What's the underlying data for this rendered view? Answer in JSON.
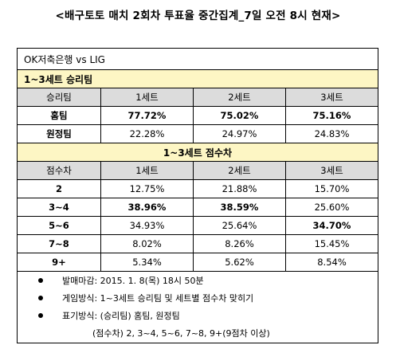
{
  "title": "<배구토토 매치 2회차 투표율 중간집계_7일 오전 8시 현재>",
  "match": "OK저축은행 vs LIG",
  "section1": {
    "title": "1~3세트 승리팀",
    "headers": [
      "승리팀",
      "1세트",
      "2세트",
      "3세트"
    ],
    "rows": [
      {
        "label": "홈팀",
        "values": [
          "77.72%",
          "75.02%",
          "75.16%"
        ]
      },
      {
        "label": "원정팀",
        "values": [
          "22.28%",
          "24.97%",
          "24.83%"
        ]
      }
    ]
  },
  "section2": {
    "title": "1~3세트 점수차",
    "headers": [
      "점수차",
      "1세트",
      "2세트",
      "3세트"
    ],
    "rows": [
      {
        "label": "2",
        "values": [
          "12.75%",
          "21.88%",
          "15.70%"
        ]
      },
      {
        "label": "3~4",
        "values": [
          "38.96%",
          "38.59%",
          "25.60%"
        ]
      },
      {
        "label": "5~6",
        "values": [
          "34.93%",
          "25.64%",
          "34.70%"
        ]
      },
      {
        "label": "7~8",
        "values": [
          "8.02%",
          "8.26%",
          "15.45%"
        ]
      },
      {
        "label": "9+",
        "values": [
          "5.34%",
          "5.62%",
          "8.54%"
        ]
      }
    ]
  },
  "notes": [
    "발매마감: 2015. 1. 8(목) 18시 50분",
    "게임방식: 1~3세트 승리팀 및 세트별 점수차 맞히기",
    "표기방식: (승리팀) 홈팀, 원정팀"
  ],
  "note_continuation": "(점수차) 2, 3~4, 5~6, 7~8, 9+(9점차 이상)"
}
